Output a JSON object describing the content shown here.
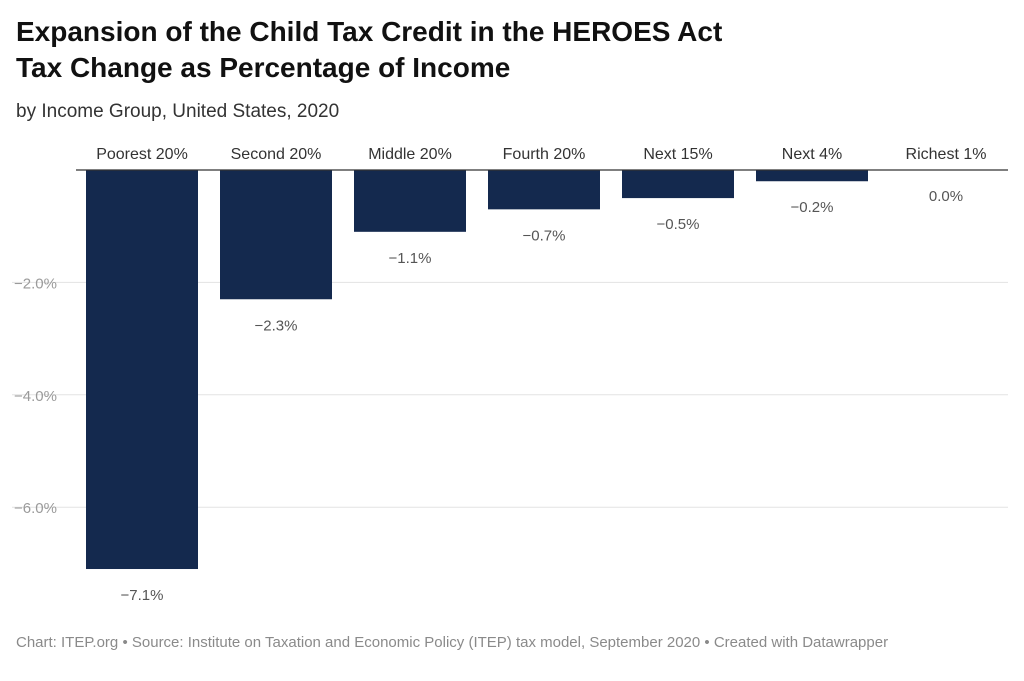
{
  "title_line1": "Expansion of the Child Tax Credit in the HEROES Act",
  "title_line2": "Tax Change as Percentage of Income",
  "subtitle": "by Income Group, United States, 2020",
  "footer": {
    "chart_credit": "Chart: ITEP.org",
    "separator": " • ",
    "source": "Source: Institute on Taxation and Economic Policy (ITEP) tax model, September 2020",
    "created_with": "Created with Datawrapper"
  },
  "colors": {
    "bar": "#14294e",
    "gridline": "#e3e3e3",
    "baseline": "#333333",
    "tick_label": "#9a9a9a",
    "value_label": "#555555",
    "category_label": "#333333"
  },
  "chart_data": {
    "type": "bar",
    "title": "Expansion of the Child Tax Credit in the HEROES Act – Tax Change as Percentage of Income",
    "categories": [
      "Poorest 20%",
      "Second 20%",
      "Middle 20%",
      "Fourth 20%",
      "Next 15%",
      "Next 4%",
      "Richest 1%"
    ],
    "values": [
      -7.1,
      -2.3,
      -1.1,
      -0.7,
      -0.5,
      -0.2,
      0.0
    ],
    "value_labels": [
      "−7.1%",
      "−2.3%",
      "−1.1%",
      "−0.7%",
      "−0.5%",
      "−0.2%",
      "0.0%"
    ],
    "yticks": [
      -2.0,
      -4.0,
      -6.0
    ],
    "ytick_labels": [
      "−2.0%",
      "−4.0%",
      "−6.0%"
    ],
    "ylim": [
      -7.1,
      0
    ],
    "xlabel": "",
    "ylabel": "",
    "grid": true,
    "category_labels_position": "top"
  }
}
